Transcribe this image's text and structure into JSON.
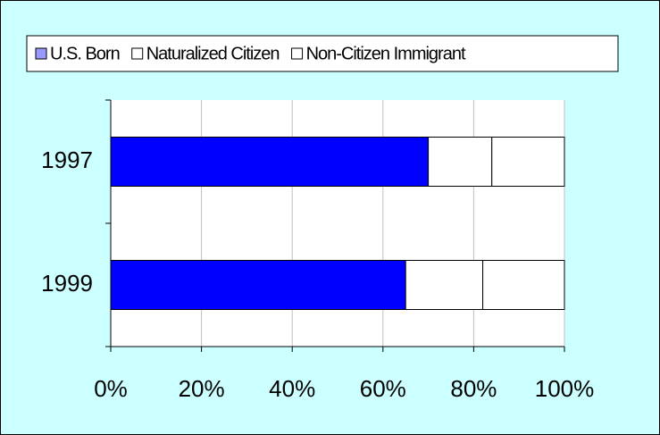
{
  "chart_data": {
    "type": "stacked-bar-horizontal",
    "categories": [
      "1997",
      "1999"
    ],
    "series": [
      {
        "name": "U.S. Born",
        "color": "#0000ff",
        "values": [
          70,
          65
        ]
      },
      {
        "name": "Naturalized Citizen",
        "color": "#ffffff",
        "values": [
          14,
          17
        ]
      },
      {
        "name": "Non-Citizen Immigrant",
        "color": "#ffffff",
        "values": [
          16,
          18
        ]
      }
    ],
    "xlim": [
      0,
      100
    ],
    "xticks": [
      {
        "value": 0,
        "label": "0%"
      },
      {
        "value": 20,
        "label": "20%"
      },
      {
        "value": 40,
        "label": "40%"
      },
      {
        "value": 60,
        "label": "60%"
      },
      {
        "value": 80,
        "label": "80%"
      },
      {
        "value": 100,
        "label": "100%"
      }
    ],
    "grid": true,
    "legend": "top"
  }
}
